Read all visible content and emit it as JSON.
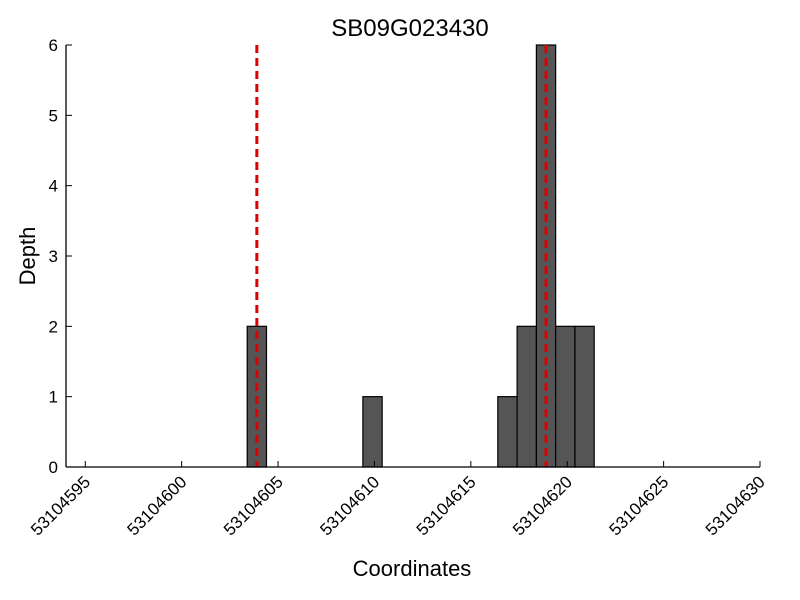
{
  "chart_data": {
    "type": "bar",
    "title": "SB09G023430",
    "xlabel": "Coordinates",
    "ylabel": "Depth",
    "xlim": [
      53104594,
      53104630
    ],
    "ylim": [
      0,
      6
    ],
    "xticks": [
      53104595,
      53104600,
      53104605,
      53104610,
      53104615,
      53104620,
      53104625,
      53104630
    ],
    "yticks": [
      0,
      1,
      2,
      3,
      4,
      5,
      6
    ],
    "bins": [
      {
        "x0": 53104603.4,
        "x1": 53104604.4,
        "value": 2
      },
      {
        "x0": 53104609.4,
        "x1": 53104610.4,
        "value": 1
      },
      {
        "x0": 53104616.4,
        "x1": 53104617.4,
        "value": 1
      },
      {
        "x0": 53104617.4,
        "x1": 53104618.4,
        "value": 2
      },
      {
        "x0": 53104618.4,
        "x1": 53104619.4,
        "value": 6
      },
      {
        "x0": 53104619.4,
        "x1": 53104620.4,
        "value": 2
      },
      {
        "x0": 53104620.4,
        "x1": 53104621.4,
        "value": 2
      }
    ],
    "reference_lines": [
      53104603.9,
      53104618.9
    ],
    "colors": {
      "bar_fill": "#555555",
      "bar_edge": "#000000",
      "reference_line": "#dd0000"
    },
    "grid": false
  }
}
